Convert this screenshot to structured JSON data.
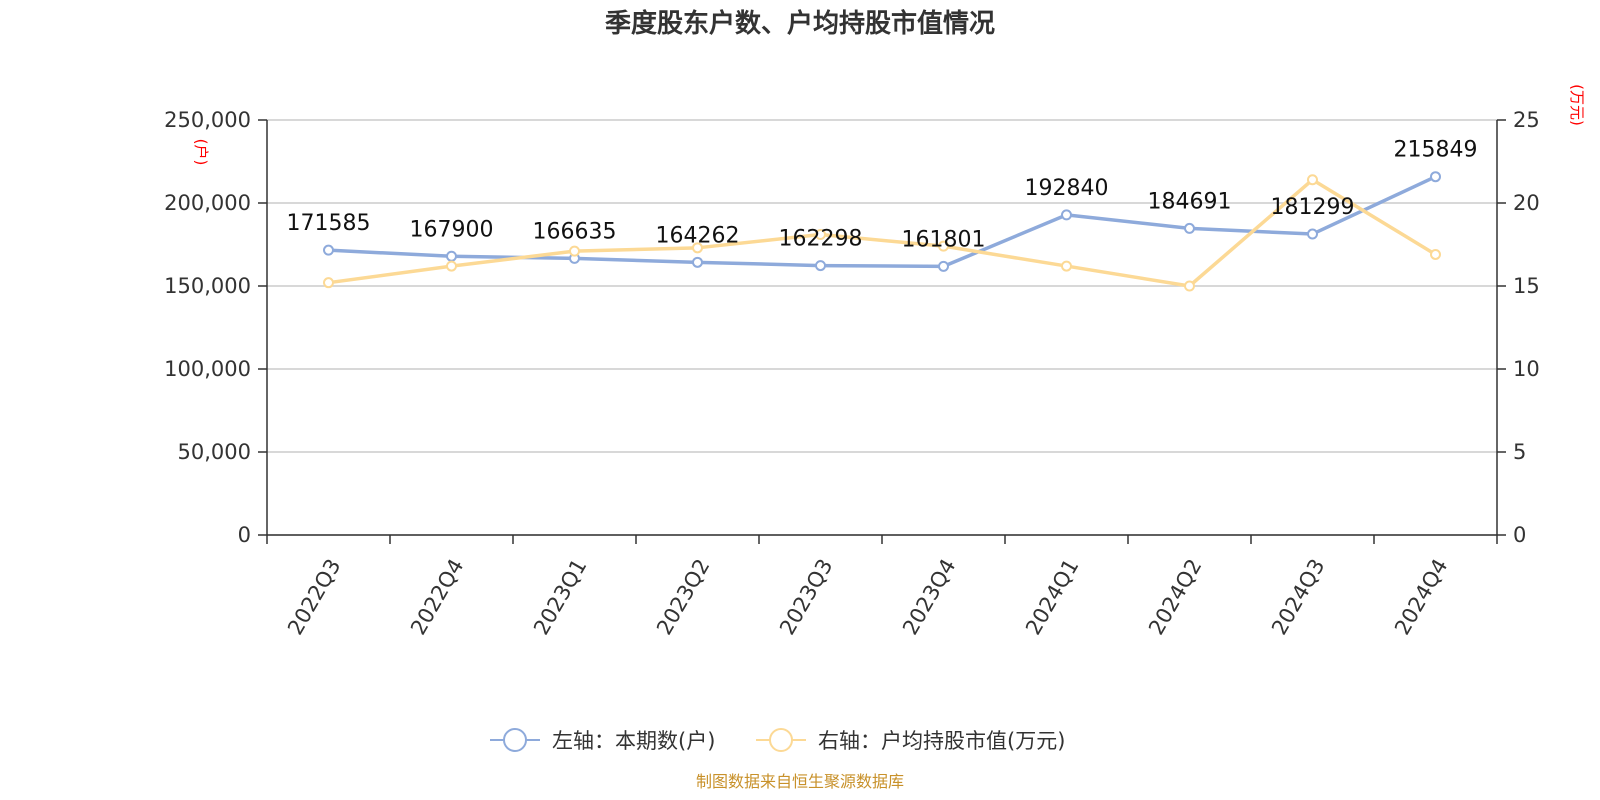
{
  "chart_data": {
    "type": "line",
    "title": "季度股东户数、户均持股市值情况",
    "categories": [
      "2022Q3",
      "2022Q4",
      "2023Q1",
      "2023Q2",
      "2023Q3",
      "2023Q4",
      "2024Q1",
      "2024Q2",
      "2024Q3",
      "2024Q4"
    ],
    "left_axis": {
      "unit": "(户)",
      "range": [
        0,
        250000
      ],
      "ticks": [
        0,
        50000,
        100000,
        150000,
        200000,
        250000
      ],
      "tick_labels": [
        "0",
        "50,000",
        "100,000",
        "150,000",
        "200,000",
        "250,000"
      ]
    },
    "right_axis": {
      "unit": "(万元)",
      "range": [
        0,
        25
      ],
      "ticks": [
        0,
        5,
        10,
        15,
        20,
        25
      ],
      "tick_labels": [
        "0",
        "5",
        "10",
        "15",
        "20",
        "25"
      ]
    },
    "grid": true,
    "legend_position": "bottom",
    "series": [
      {
        "name": "左轴：本期数(户)",
        "axis": "left",
        "color": "#8eaadb",
        "values": [
          171585,
          167900,
          166635,
          164262,
          162298,
          161801,
          192840,
          184691,
          181299,
          215849
        ],
        "labels": [
          "171585",
          "167900",
          "166635",
          "164262",
          "162298",
          "161801",
          "192840",
          "184691",
          "181299",
          "215849"
        ]
      },
      {
        "name": "右轴：户均持股市值(万元)",
        "axis": "right",
        "color": "#fcd995",
        "values": [
          15.2,
          16.2,
          17.1,
          17.3,
          18.1,
          17.4,
          16.2,
          15.0,
          21.4,
          16.9
        ]
      }
    ],
    "source": "制图数据来自恒生聚源数据库"
  }
}
